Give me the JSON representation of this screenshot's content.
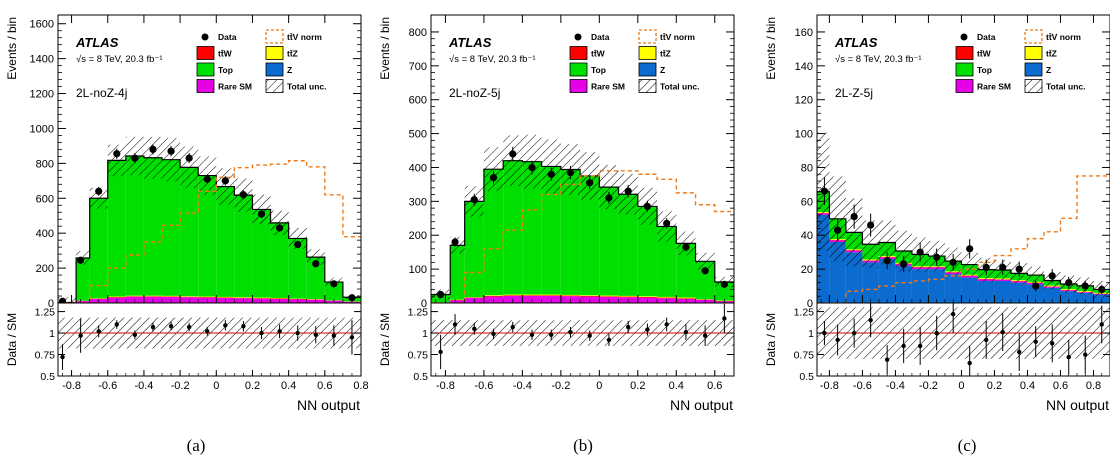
{
  "chart_data": [
    {
      "type": "area",
      "panel_caption": "(a)",
      "region": "2L-noZ-4j",
      "experiment": "ATLAS",
      "energy_label": "√s = 8 TeV, 20.3 fb⁻¹",
      "ylabel": "Events / bin",
      "ratio_ylabel": "Data / SM",
      "xlabel": "NN output",
      "xlim": [
        -0.875,
        0.8
      ],
      "ylim": [
        0,
        1650
      ],
      "xticks": [
        -0.8,
        -0.6,
        -0.4,
        -0.2,
        0,
        0.2,
        0.4,
        0.6,
        0.8
      ],
      "yticks": [
        0,
        200,
        400,
        600,
        800,
        1000,
        1200,
        1400,
        1600
      ],
      "ratio_ylim": [
        0.5,
        1.35
      ],
      "ratio_yticks": [
        0.5,
        0.75,
        1,
        1.25
      ],
      "bin_edges": [
        -0.875,
        -0.775,
        -0.7,
        -0.65,
        -0.6,
        -0.55,
        -0.5,
        -0.45,
        -0.4,
        -0.35,
        -0.3,
        -0.25,
        -0.2,
        -0.15,
        -0.1,
        -0.05,
        0,
        0.05,
        0.1,
        0.15,
        0.2,
        0.25,
        0.3,
        0.4,
        0.5,
        0.6,
        0.65,
        0.7,
        0.8
      ],
      "bins": {
        "x_low": [
          -0.875,
          -0.775,
          -0.7,
          -0.6,
          -0.5,
          -0.4,
          -0.3,
          -0.2,
          -0.1,
          0.0,
          0.1,
          0.2,
          0.3,
          0.4,
          0.5,
          0.6,
          0.7
        ],
        "x_high": [
          -0.775,
          -0.7,
          -0.6,
          -0.5,
          -0.4,
          -0.3,
          -0.2,
          -0.1,
          0.0,
          0.1,
          0.2,
          0.3,
          0.4,
          0.5,
          0.6,
          0.7,
          0.8
        ]
      },
      "stack": {
        "rare_sm": [
          3,
          10,
          22,
          30,
          35,
          35,
          34,
          32,
          30,
          28,
          26,
          24,
          22,
          20,
          18,
          12,
          6
        ],
        "top": [
          0,
          245,
          573,
          780,
          800,
          790,
          780,
          738,
          693,
          632,
          585,
          505,
          430,
          345,
          240,
          105,
          24
        ],
        "ttz": [
          0,
          1,
          2,
          3,
          3,
          3,
          3,
          3,
          3,
          3,
          3,
          3,
          3,
          2,
          2,
          1,
          1
        ],
        "ttw": [
          0,
          1,
          2,
          3,
          3,
          3,
          3,
          3,
          3,
          3,
          3,
          3,
          3,
          2,
          2,
          1,
          1
        ],
        "z": [
          0,
          1,
          1,
          1,
          1,
          1,
          1,
          1,
          1,
          1,
          1,
          1,
          1,
          1,
          1,
          1,
          1
        ]
      },
      "total_unc": [
        30,
        40,
        60,
        90,
        110,
        120,
        125,
        120,
        110,
        105,
        95,
        85,
        70,
        60,
        45,
        25,
        10
      ],
      "data": {
        "x": [
          -0.85,
          -0.75,
          -0.65,
          -0.55,
          -0.45,
          -0.35,
          -0.25,
          -0.15,
          -0.05,
          0.05,
          0.15,
          0.25,
          0.35,
          0.45,
          0.55,
          0.65,
          0.75
        ],
        "y": [
          10,
          245,
          640,
          855,
          830,
          880,
          870,
          830,
          710,
          700,
          620,
          510,
          430,
          335,
          225,
          110,
          30
        ]
      },
      "ttv_norm": [
        0,
        0,
        100,
        200,
        275,
        350,
        445,
        515,
        640,
        720,
        775,
        790,
        795,
        815,
        780,
        620,
        380
      ],
      "ratio": {
        "x": [
          -0.85,
          -0.75,
          -0.65,
          -0.55,
          -0.45,
          -0.35,
          -0.25,
          -0.15,
          -0.05,
          0.05,
          0.15,
          0.25,
          0.35,
          0.45,
          0.55,
          0.65,
          0.75
        ],
        "y": [
          0.72,
          0.97,
          1.02,
          1.1,
          0.98,
          1.07,
          1.08,
          1.07,
          1.02,
          1.09,
          1.08,
          1.0,
          1.02,
          1.0,
          0.98,
          0.97,
          0.95
        ],
        "unc": [
          0.15,
          0.2,
          0.07,
          0.05,
          0.05,
          0.05,
          0.05,
          0.05,
          0.05,
          0.06,
          0.06,
          0.07,
          0.08,
          0.09,
          0.1,
          0.12,
          0.2
        ],
        "band": 0.18
      }
    },
    {
      "type": "area",
      "panel_caption": "(b)",
      "region": "2L-noZ-5j",
      "experiment": "ATLAS",
      "energy_label": "√s = 8 TeV, 20.3 fb⁻¹",
      "ylabel": "Events / bin",
      "ratio_ylabel": "Data / SM",
      "xlabel": "NN output",
      "xlim": [
        -0.875,
        0.7
      ],
      "ylim": [
        0,
        850
      ],
      "xticks": [
        -0.8,
        -0.6,
        -0.4,
        -0.2,
        0,
        0.2,
        0.4,
        0.6
      ],
      "yticks": [
        0,
        100,
        200,
        300,
        400,
        500,
        600,
        700,
        800
      ],
      "ratio_ylim": [
        0.5,
        1.35
      ],
      "ratio_yticks": [
        0.5,
        0.75,
        1,
        1.25
      ],
      "bins": {
        "x_low": [
          -0.875,
          -0.775,
          -0.7,
          -0.6,
          -0.5,
          -0.4,
          -0.3,
          -0.2,
          -0.1,
          0.0,
          0.1,
          0.2,
          0.3,
          0.4,
          0.5,
          0.6
        ],
        "x_high": [
          -0.775,
          -0.7,
          -0.6,
          -0.5,
          -0.4,
          -0.3,
          -0.2,
          -0.1,
          0.0,
          0.1,
          0.2,
          0.3,
          0.4,
          0.5,
          0.6,
          0.7
        ]
      },
      "stack": {
        "rare_sm": [
          2,
          8,
          14,
          18,
          20,
          20,
          20,
          19,
          18,
          17,
          16,
          15,
          13,
          11,
          8,
          5
        ],
        "top": [
          23,
          160,
          283,
          372,
          395,
          392,
          378,
          370,
          352,
          320,
          300,
          265,
          208,
          160,
          112,
          55
        ],
        "ttz": [
          0,
          1,
          1,
          2,
          2,
          2,
          2,
          2,
          2,
          2,
          2,
          2,
          2,
          2,
          1,
          1
        ],
        "ttw": [
          0,
          1,
          1,
          2,
          2,
          2,
          2,
          2,
          2,
          2,
          2,
          2,
          2,
          2,
          1,
          1
        ],
        "z": [
          0,
          0,
          1,
          1,
          1,
          1,
          1,
          1,
          1,
          1,
          1,
          1,
          1,
          1,
          1,
          0
        ]
      },
      "total_unc": [
        15,
        25,
        45,
        65,
        75,
        80,
        80,
        75,
        70,
        65,
        60,
        55,
        45,
        35,
        25,
        15
      ],
      "data": {
        "x": [
          -0.825,
          -0.75,
          -0.65,
          -0.55,
          -0.45,
          -0.35,
          -0.25,
          -0.15,
          -0.05,
          0.05,
          0.15,
          0.25,
          0.35,
          0.45,
          0.55,
          0.65
        ],
        "y": [
          25,
          180,
          305,
          370,
          440,
          400,
          380,
          385,
          355,
          310,
          330,
          285,
          235,
          165,
          95,
          55
        ]
      },
      "ttv_norm": [
        0,
        0,
        90,
        160,
        215,
        275,
        320,
        350,
        375,
        390,
        390,
        380,
        365,
        325,
        290,
        270
      ],
      "ratio": {
        "x": [
          -0.825,
          -0.75,
          -0.65,
          -0.55,
          -0.45,
          -0.35,
          -0.25,
          -0.15,
          -0.05,
          0.05,
          0.15,
          0.25,
          0.35,
          0.45,
          0.55,
          0.65
        ],
        "y": [
          0.78,
          1.1,
          1.05,
          0.99,
          1.07,
          0.98,
          0.98,
          1.01,
          0.97,
          0.92,
          1.07,
          1.04,
          1.1,
          1.01,
          0.97,
          1.17
        ],
        "unc": [
          0.2,
          0.12,
          0.07,
          0.06,
          0.06,
          0.06,
          0.06,
          0.06,
          0.06,
          0.07,
          0.07,
          0.07,
          0.08,
          0.09,
          0.12,
          0.17
        ],
        "band": 0.15
      }
    },
    {
      "type": "area",
      "panel_caption": "(c)",
      "region": "2L-Z-5j",
      "experiment": "ATLAS",
      "energy_label": "√s = 8 TeV, 20.3 fb⁻¹",
      "ylabel": "Events / bin",
      "ratio_ylabel": "Data / SM",
      "xlabel": "NN output",
      "xlim": [
        -0.875,
        0.9
      ],
      "ylim": [
        0,
        170
      ],
      "xticks": [
        -0.8,
        -0.6,
        -0.4,
        -0.2,
        0,
        0.2,
        0.4,
        0.6,
        0.8
      ],
      "yticks": [
        0,
        20,
        40,
        60,
        80,
        100,
        120,
        140,
        160
      ],
      "ratio_ylim": [
        0.5,
        1.35
      ],
      "ratio_yticks": [
        0.5,
        0.75,
        1,
        1.25
      ],
      "bins": {
        "x_low": [
          -0.875,
          -0.8,
          -0.7,
          -0.6,
          -0.5,
          -0.4,
          -0.3,
          -0.2,
          -0.1,
          0.0,
          0.1,
          0.2,
          0.3,
          0.4,
          0.5,
          0.6,
          0.7,
          0.8
        ],
        "x_high": [
          -0.8,
          -0.7,
          -0.6,
          -0.5,
          -0.4,
          -0.3,
          -0.2,
          -0.1,
          0.0,
          0.1,
          0.2,
          0.3,
          0.4,
          0.5,
          0.6,
          0.7,
          0.8,
          0.9
        ]
      },
      "stack": {
        "rare_sm": [
          1,
          1,
          1,
          1,
          1,
          1,
          1,
          1,
          1,
          1,
          1,
          0.8,
          0.8,
          0.8,
          0.6,
          0.5,
          0.4,
          0.3
        ],
        "top": [
          12,
          12,
          10,
          9,
          8,
          7,
          7,
          6,
          6,
          6,
          5,
          5,
          4,
          4,
          3,
          3,
          3,
          2
        ],
        "ttz": [
          0.5,
          0.5,
          0.5,
          0.5,
          0.5,
          0.5,
          0.5,
          0.5,
          0.5,
          0.5,
          0.5,
          0.5,
          0.5,
          0.5,
          0.5,
          0.5,
          0.5,
          0.5
        ],
        "ttw": [
          0.2,
          0.2,
          0.2,
          0.2,
          0.2,
          0.2,
          0.2,
          0.2,
          0.2,
          0.2,
          0.2,
          0.2,
          0.2,
          0.2,
          0.2,
          0.2,
          0.2,
          0.2
        ],
        "z": [
          52,
          36,
          30,
          24,
          26,
          22,
          20,
          20,
          17,
          15,
          13,
          13,
          12,
          11,
          9,
          7,
          6,
          5
        ]
      },
      "total_unc": [
        35,
        25,
        20,
        14,
        13,
        12,
        10,
        9,
        8,
        7,
        7,
        6,
        6,
        5,
        5,
        5,
        5,
        5
      ],
      "data": {
        "x": [
          -0.83,
          -0.75,
          -0.65,
          -0.55,
          -0.45,
          -0.35,
          -0.25,
          -0.15,
          -0.05,
          0.05,
          0.15,
          0.25,
          0.35,
          0.45,
          0.55,
          0.65,
          0.75,
          0.85
        ],
        "y": [
          66,
          43,
          51,
          46,
          25,
          23,
          30,
          27,
          24,
          32,
          21,
          21,
          20,
          10,
          16,
          12,
          10,
          8
        ]
      },
      "ttv_norm": [
        0,
        0,
        7,
        8,
        10,
        12,
        13,
        14,
        16,
        20,
        24,
        28,
        32,
        38,
        42,
        50,
        75,
        75
      ],
      "ratio": {
        "x": [
          -0.83,
          -0.75,
          -0.65,
          -0.55,
          -0.45,
          -0.35,
          -0.25,
          -0.15,
          -0.05,
          0.05,
          0.15,
          0.25,
          0.35,
          0.45,
          0.55,
          0.65,
          0.75,
          0.85
        ],
        "y": [
          1.0,
          0.92,
          1.0,
          1.15,
          0.69,
          0.85,
          0.85,
          1.0,
          1.22,
          0.65,
          0.92,
          1.01,
          0.78,
          0.9,
          0.88,
          0.72,
          0.75,
          1.1
        ],
        "unc": [
          0.14,
          0.18,
          0.17,
          0.2,
          0.17,
          0.2,
          0.22,
          0.2,
          0.22,
          0.2,
          0.22,
          0.22,
          0.22,
          0.18,
          0.22,
          0.2,
          0.22,
          0.22
        ],
        "band": 0.3
      }
    }
  ],
  "legend": {
    "data": "Data",
    "ttv_norm": "tt̄V norm",
    "ttw": "tt̄W",
    "ttz": "tt̄Z",
    "top": "Top",
    "z": "Z",
    "rare_sm": "Rare SM",
    "total_unc": "Total unc."
  },
  "colors": {
    "ttw": "#ff0000",
    "ttz": "#ffff00",
    "top": "#00e000",
    "z": "#0b6bcf",
    "rare_sm": "#e600e6",
    "ttv_norm": "#ef7b19",
    "ratio_line": "#d00000"
  }
}
